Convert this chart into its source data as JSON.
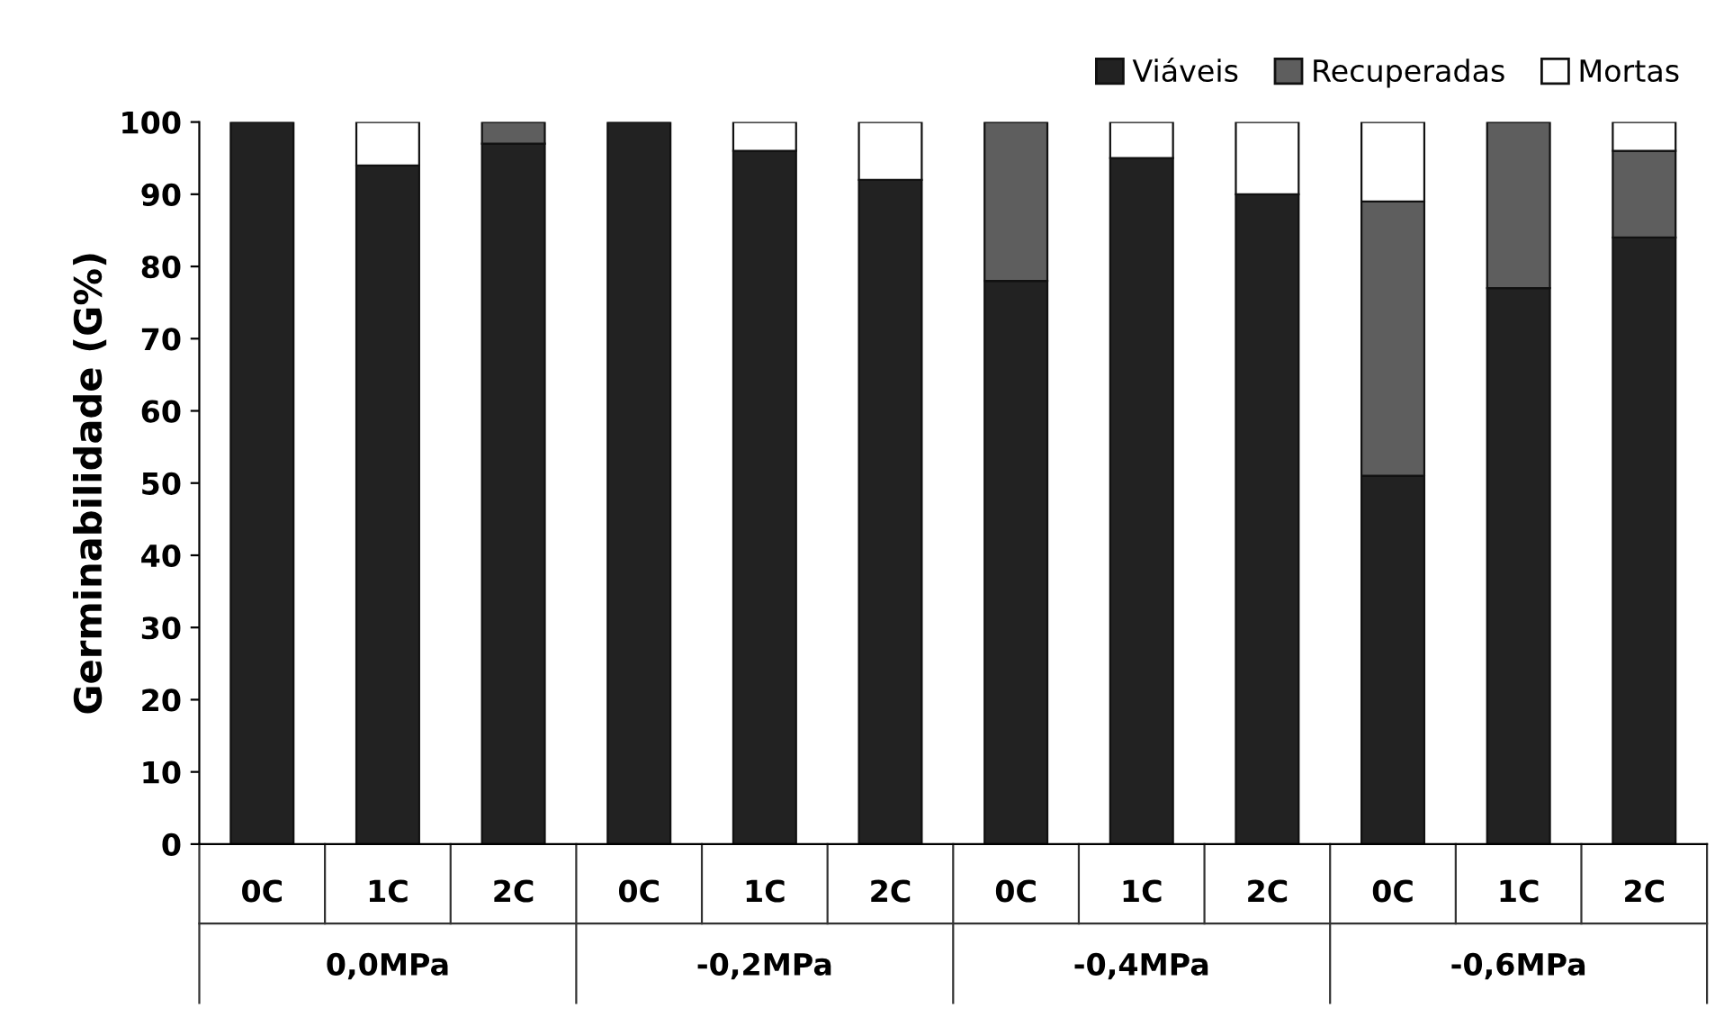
{
  "chart_data": {
    "type": "bar",
    "stacked": true,
    "ylabel": "Germinabilidade (G%)",
    "categories": [
      "0C",
      "1C",
      "2C",
      "0C",
      "1C",
      "2C",
      "0C",
      "1C",
      "2C",
      "0C",
      "1C",
      "2C"
    ],
    "annotations": [
      "0,0MPa",
      "-0,2MPa",
      "-0,4MPa",
      "-0,6MPa"
    ],
    "series": [
      {
        "name": "Viáveis",
        "color": "#222222",
        "values": [
          100,
          94,
          97,
          100,
          96,
          92,
          78,
          95,
          90,
          51,
          77,
          84
        ]
      },
      {
        "name": "Recuperadas",
        "color": "#5e5e5e",
        "values": [
          null,
          null,
          3,
          null,
          null,
          null,
          22,
          null,
          null,
          38,
          23,
          12
        ]
      },
      {
        "name": "Mortas",
        "color": "#ffffff",
        "values": [
          null,
          6,
          null,
          null,
          4,
          8,
          null,
          5,
          10,
          11,
          null,
          4
        ]
      }
    ],
    "ylim": [
      0,
      100
    ],
    "yticks": [
      0,
      10,
      20,
      30,
      40,
      50,
      60,
      70,
      80,
      90,
      100
    ],
    "grid": false,
    "legend": "top right"
  }
}
